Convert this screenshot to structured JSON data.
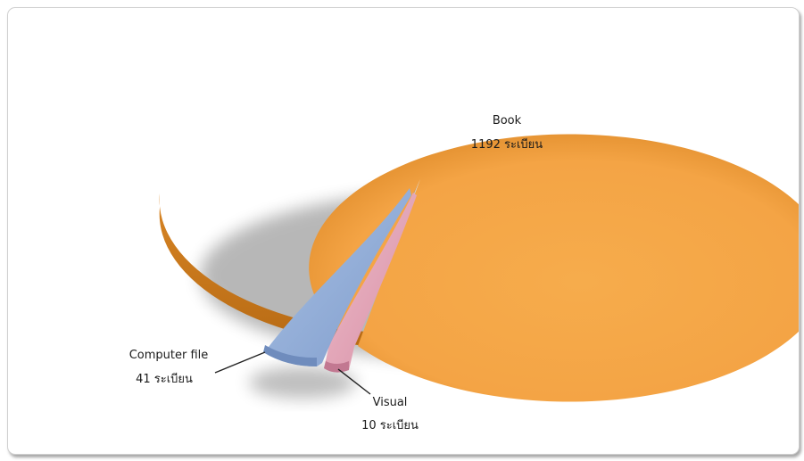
{
  "chart_data": {
    "type": "pie",
    "style": "3d-exploded",
    "title": "",
    "legend": "none",
    "slices": [
      {
        "name": "Book",
        "value": 1192,
        "unit": "ระเบียน",
        "color": "#f2a13f"
      },
      {
        "name": "Visual",
        "value": 10,
        "unit": "ระเบียน",
        "color": "#e6a9bb"
      },
      {
        "name": "Computer file",
        "value": 41,
        "unit": "ระเบียน",
        "color": "#95b0d8"
      }
    ],
    "data_labels": [
      {
        "name": "Book",
        "value_text": "1192 ระเบียน"
      },
      {
        "name": "Visual",
        "value_text": "10 ระเบียน"
      },
      {
        "name": "Computer file",
        "value_text": "41 ระเบียน"
      }
    ]
  }
}
